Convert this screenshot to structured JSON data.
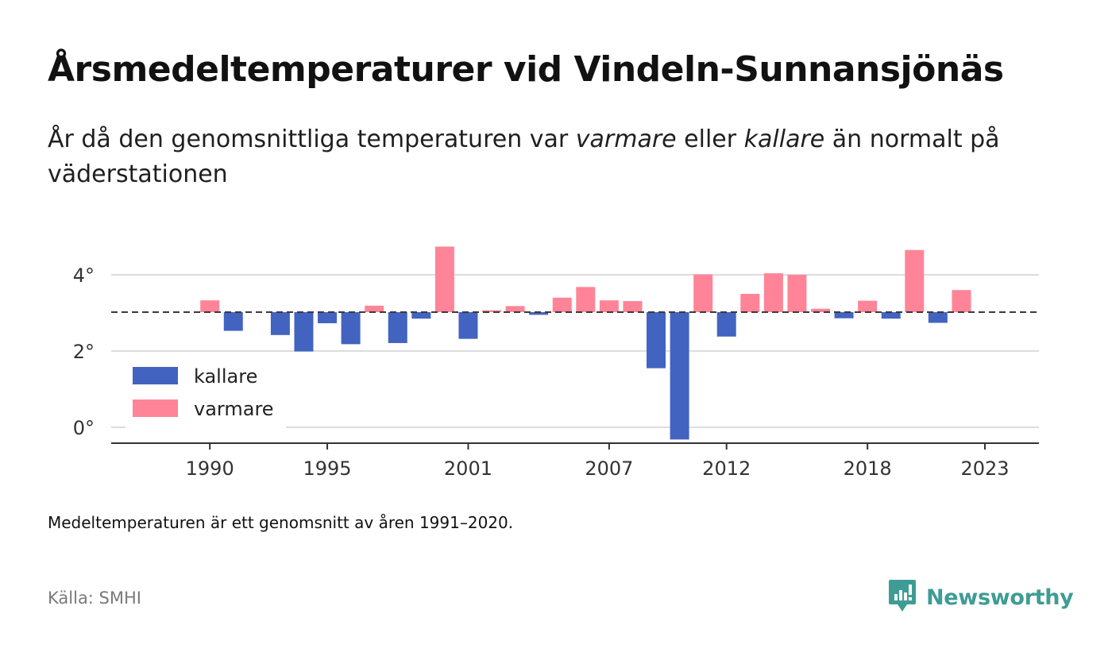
{
  "title": "Årsmedeltemperaturer vid Vindeln-Sunnansjönäs",
  "subtitle": {
    "part1": "År då den genomsnittliga temperaturen var ",
    "warm_word": "varmare",
    "part2": " eller ",
    "cold_word": "kallare",
    "part3": " än normalt på väderstationen"
  },
  "footnote": "Medeltemperaturen är ett genomsnitt av åren 1991–2020.",
  "source": "Källa: SMHI",
  "brand": {
    "name": "Newsworthy",
    "icon": "newsworthy-logo-icon",
    "color": "#3f9c94"
  },
  "colors": {
    "kallare": "#4263c0",
    "varmare": "#ff8497"
  },
  "chart_data": {
    "type": "bar",
    "baseline": 3.02,
    "ylim": [
      -0.35,
      5.0
    ],
    "y_ticks": [
      0,
      2,
      4
    ],
    "y_tick_labels": [
      "0°",
      "2°",
      "4°"
    ],
    "x_ticks": [
      1990,
      1995,
      2001,
      2007,
      2012,
      2018,
      2023
    ],
    "xlim": [
      1985.8,
      2025.3
    ],
    "legend": {
      "position": "bottom-left",
      "entries": [
        "kallare",
        "varmare"
      ]
    },
    "grid": true,
    "series": [
      {
        "name": "values",
        "x": [
          1990,
          1991,
          1993,
          1994,
          1995,
          1996,
          1997,
          1998,
          1999,
          2000,
          2001,
          2002,
          2003,
          2004,
          2005,
          2006,
          2007,
          2008,
          2009,
          2010,
          2011,
          2012,
          2013,
          2014,
          2015,
          2016,
          2017,
          2018,
          2019,
          2020,
          2021,
          2022
        ],
        "values": [
          3.33,
          2.53,
          2.42,
          1.99,
          2.73,
          2.18,
          3.19,
          2.21,
          2.85,
          4.74,
          2.32,
          3.07,
          3.18,
          2.95,
          3.4,
          3.68,
          3.33,
          3.31,
          1.55,
          -0.32,
          4.01,
          2.38,
          3.5,
          4.04,
          4.0,
          3.11,
          2.86,
          3.32,
          2.85,
          4.65,
          2.74,
          3.6
        ]
      }
    ]
  }
}
